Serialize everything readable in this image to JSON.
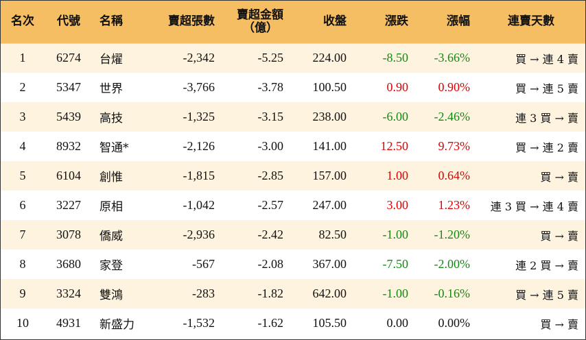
{
  "headers": {
    "rank": "名次",
    "code": "代號",
    "name": "名稱",
    "sell_volume": "賣超張數",
    "sell_amount_line1": "賣超金額",
    "sell_amount_line2": "（億）",
    "close": "收盤",
    "change": "漲跌",
    "change_pct": "漲幅",
    "streak": "連賣天數"
  },
  "colors": {
    "header_bg": "#f6be62",
    "row_alt_bg": "#fdf3df",
    "up": "#e00000",
    "down": "#128a12"
  },
  "rows": [
    {
      "rank": "1",
      "code": "6274",
      "name": "台燿",
      "sell_volume": "-2,342",
      "sell_amount": "-5.25",
      "close": "224.00",
      "change": "-8.50",
      "change_pct": "-3.66%",
      "direction": "down",
      "streak": "買 → 連 4 賣"
    },
    {
      "rank": "2",
      "code": "5347",
      "name": "世界",
      "sell_volume": "-3,766",
      "sell_amount": "-3.78",
      "close": "100.50",
      "change": "0.90",
      "change_pct": "0.90%",
      "direction": "up",
      "streak": "買 → 連 5 賣"
    },
    {
      "rank": "3",
      "code": "5439",
      "name": "高技",
      "sell_volume": "-1,325",
      "sell_amount": "-3.15",
      "close": "238.00",
      "change": "-6.00",
      "change_pct": "-2.46%",
      "direction": "down",
      "streak": "連 3 買 → 賣"
    },
    {
      "rank": "4",
      "code": "8932",
      "name": "智通*",
      "sell_volume": "-2,126",
      "sell_amount": "-3.00",
      "close": "141.00",
      "change": "12.50",
      "change_pct": "9.73%",
      "direction": "up",
      "streak": "買 → 連 2 賣"
    },
    {
      "rank": "5",
      "code": "6104",
      "name": "創惟",
      "sell_volume": "-1,815",
      "sell_amount": "-2.85",
      "close": "157.00",
      "change": "1.00",
      "change_pct": "0.64%",
      "direction": "up",
      "streak": "買 → 賣"
    },
    {
      "rank": "6",
      "code": "3227",
      "name": "原相",
      "sell_volume": "-1,042",
      "sell_amount": "-2.57",
      "close": "247.00",
      "change": "3.00",
      "change_pct": "1.23%",
      "direction": "up",
      "streak": "連 3 買 → 連 4 賣"
    },
    {
      "rank": "7",
      "code": "3078",
      "name": "僑威",
      "sell_volume": "-2,936",
      "sell_amount": "-2.42",
      "close": "82.50",
      "change": "-1.00",
      "change_pct": "-1.20%",
      "direction": "down",
      "streak": "買 → 賣"
    },
    {
      "rank": "8",
      "code": "3680",
      "name": "家登",
      "sell_volume": "-567",
      "sell_amount": "-2.08",
      "close": "367.00",
      "change": "-7.50",
      "change_pct": "-2.00%",
      "direction": "down",
      "streak": "連 2 買 → 賣"
    },
    {
      "rank": "9",
      "code": "3324",
      "name": "雙鴻",
      "sell_volume": "-283",
      "sell_amount": "-1.82",
      "close": "642.00",
      "change": "-1.00",
      "change_pct": "-0.16%",
      "direction": "down",
      "streak": "買 → 連 5 賣"
    },
    {
      "rank": "10",
      "code": "4931",
      "name": "新盛力",
      "sell_volume": "-1,532",
      "sell_amount": "-1.62",
      "close": "105.50",
      "change": "0.00",
      "change_pct": "0.00%",
      "direction": "flat",
      "streak": "買 → 賣"
    }
  ]
}
